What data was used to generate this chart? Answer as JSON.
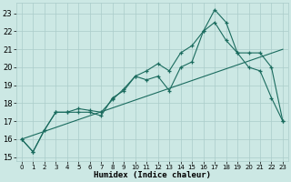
{
  "xlabel": "Humidex (Indice chaleur)",
  "bg_color": "#cce8e4",
  "grid_color": "#aaccca",
  "line_color": "#1a6b5e",
  "xlim": [
    -0.5,
    23.5
  ],
  "ylim": [
    14.8,
    23.6
  ],
  "xticks": [
    0,
    1,
    2,
    3,
    4,
    5,
    6,
    7,
    8,
    9,
    10,
    11,
    12,
    13,
    14,
    15,
    16,
    17,
    18,
    19,
    20,
    21,
    22,
    23
  ],
  "yticks": [
    15,
    16,
    17,
    18,
    19,
    20,
    21,
    22,
    23
  ],
  "line1_x": [
    0,
    1,
    2,
    3,
    4,
    5,
    6,
    7,
    8,
    9,
    10,
    11,
    12,
    13,
    14,
    15,
    16,
    17,
    18,
    19,
    20,
    21,
    22,
    23
  ],
  "line1_y": [
    16.0,
    15.3,
    16.5,
    17.5,
    17.5,
    17.5,
    17.5,
    17.3,
    18.3,
    18.7,
    19.5,
    19.3,
    19.5,
    18.7,
    20.0,
    20.3,
    22.0,
    23.2,
    22.5,
    20.8,
    20.0,
    19.8,
    18.3,
    17.0
  ],
  "line2_x": [
    0,
    23
  ],
  "line2_y": [
    16.0,
    21.0
  ],
  "line3_x": [
    0,
    1,
    2,
    3,
    4,
    5,
    6,
    7,
    8,
    9,
    10,
    11,
    12,
    13,
    14,
    15,
    16,
    17,
    18,
    19,
    20,
    21,
    22,
    23
  ],
  "line3_y": [
    16.0,
    15.3,
    16.5,
    17.5,
    17.5,
    17.7,
    17.6,
    17.5,
    18.2,
    18.8,
    19.5,
    19.8,
    20.2,
    19.8,
    20.8,
    21.2,
    22.0,
    22.5,
    21.5,
    20.8,
    20.8,
    20.8,
    20.0,
    17.0
  ]
}
